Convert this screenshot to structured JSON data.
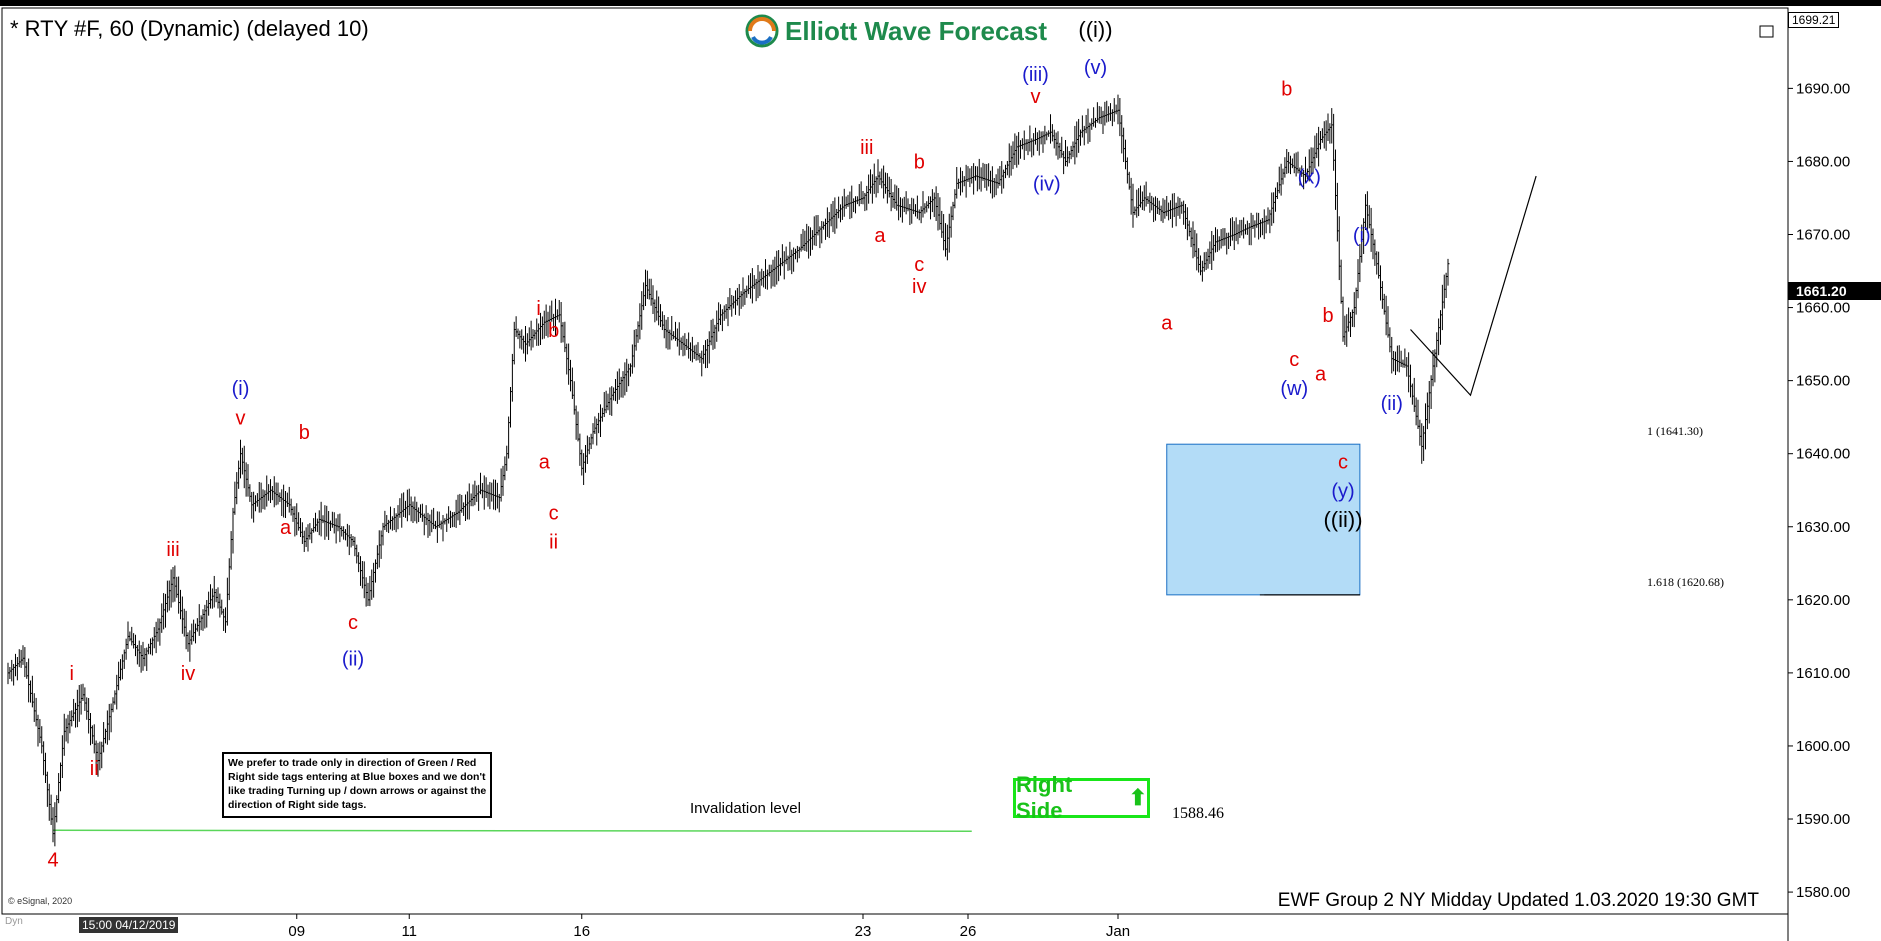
{
  "header": {
    "title": "* RTY #F, 60 (Dynamic) (delayed 10)",
    "brand": "Elliott Wave Forecast"
  },
  "chart_data": {
    "type": "candlestick",
    "title": "* RTY #F, 60 (Dynamic) (delayed 10)",
    "y_ticks": [
      "1690.00",
      "1680.00",
      "1670.00",
      "1660.00",
      "1650.00",
      "1640.00",
      "1630.00",
      "1620.00",
      "1610.00",
      "1600.00",
      "1590.00",
      "1580.00"
    ],
    "ylim": [
      1577,
      1701
    ],
    "x_ticks": [
      "09",
      "11",
      "16",
      "23",
      "26",
      "Jan"
    ],
    "current_price": "1661.20",
    "top_price": "1699.21",
    "price_path": [
      [
        0,
        1610
      ],
      [
        8,
        1612
      ],
      [
        18,
        1600
      ],
      [
        24,
        1588
      ],
      [
        30,
        1602
      ],
      [
        40,
        1607
      ],
      [
        48,
        1598
      ],
      [
        56,
        1606
      ],
      [
        64,
        1615
      ],
      [
        72,
        1612
      ],
      [
        80,
        1616
      ],
      [
        88,
        1623
      ],
      [
        96,
        1614
      ],
      [
        104,
        1618
      ],
      [
        110,
        1621
      ],
      [
        116,
        1617
      ],
      [
        120,
        1632
      ],
      [
        124,
        1640
      ],
      [
        130,
        1633
      ],
      [
        140,
        1635
      ],
      [
        150,
        1633
      ],
      [
        158,
        1628
      ],
      [
        166,
        1631
      ],
      [
        176,
        1630
      ],
      [
        184,
        1628
      ],
      [
        192,
        1620
      ],
      [
        200,
        1630
      ],
      [
        214,
        1633
      ],
      [
        228,
        1630
      ],
      [
        240,
        1632
      ],
      [
        252,
        1635
      ],
      [
        262,
        1634
      ],
      [
        266,
        1640
      ],
      [
        270,
        1657
      ],
      [
        276,
        1655
      ],
      [
        286,
        1658
      ],
      [
        294,
        1659
      ],
      [
        300,
        1650
      ],
      [
        306,
        1638
      ],
      [
        312,
        1643
      ],
      [
        322,
        1648
      ],
      [
        332,
        1652
      ],
      [
        340,
        1663
      ],
      [
        350,
        1657
      ],
      [
        360,
        1655
      ],
      [
        370,
        1653
      ],
      [
        380,
        1659
      ],
      [
        392,
        1662
      ],
      [
        402,
        1664
      ],
      [
        412,
        1666
      ],
      [
        422,
        1668
      ],
      [
        434,
        1671
      ],
      [
        446,
        1674
      ],
      [
        456,
        1675
      ],
      [
        464,
        1678
      ],
      [
        474,
        1674
      ],
      [
        486,
        1673
      ],
      [
        494,
        1675
      ],
      [
        500,
        1668
      ],
      [
        506,
        1677
      ],
      [
        516,
        1678
      ],
      [
        528,
        1677
      ],
      [
        538,
        1682
      ],
      [
        548,
        1683
      ],
      [
        556,
        1684
      ],
      [
        564,
        1680
      ],
      [
        572,
        1684
      ],
      [
        582,
        1686
      ],
      [
        592,
        1687
      ],
      [
        600,
        1673
      ],
      [
        606,
        1675
      ],
      [
        616,
        1673
      ],
      [
        626,
        1674
      ],
      [
        636,
        1665
      ],
      [
        644,
        1669
      ],
      [
        654,
        1670
      ],
      [
        662,
        1671
      ],
      [
        672,
        1672
      ],
      [
        682,
        1680
      ],
      [
        692,
        1678
      ],
      [
        700,
        1683
      ],
      [
        706,
        1685
      ],
      [
        712,
        1656
      ],
      [
        718,
        1660
      ],
      [
        724,
        1674
      ],
      [
        730,
        1666
      ],
      [
        738,
        1653
      ],
      [
        746,
        1652
      ],
      [
        754,
        1641
      ],
      [
        760,
        1652
      ],
      [
        768,
        1666
      ]
    ],
    "projection": [
      [
        748,
        1657
      ],
      [
        780,
        1648
      ],
      [
        815,
        1678
      ]
    ],
    "wave_labels": [
      {
        "text": "4",
        "color": "#e00000",
        "x": 24,
        "y": 1583.5
      },
      {
        "text": "i",
        "color": "#e00000",
        "x": 34,
        "y": 1609
      },
      {
        "text": "ii",
        "color": "#e00000",
        "x": 46,
        "y": 1596
      },
      {
        "text": "iii",
        "color": "#e00000",
        "x": 88,
        "y": 1626
      },
      {
        "text": "iv",
        "color": "#e00000",
        "x": 96,
        "y": 1609
      },
      {
        "text": "(i)",
        "color": "#1a1acc",
        "x": 124,
        "y": 1648
      },
      {
        "text": "v",
        "color": "#e00000",
        "x": 124,
        "y": 1644
      },
      {
        "text": "a",
        "color": "#e00000",
        "x": 148,
        "y": 1629
      },
      {
        "text": "b",
        "color": "#e00000",
        "x": 158,
        "y": 1642
      },
      {
        "text": "c",
        "color": "#e00000",
        "x": 184,
        "y": 1616
      },
      {
        "text": "(ii)",
        "color": "#1a1acc",
        "x": 184,
        "y": 1611
      },
      {
        "text": "i",
        "color": "#e00000",
        "x": 283,
        "y": 1659
      },
      {
        "text": "b",
        "color": "#e00000",
        "x": 291,
        "y": 1656
      },
      {
        "text": "a",
        "color": "#e00000",
        "x": 286,
        "y": 1638
      },
      {
        "text": "c",
        "color": "#e00000",
        "x": 291,
        "y": 1631
      },
      {
        "text": "ii",
        "color": "#e00000",
        "x": 291,
        "y": 1627
      },
      {
        "text": "iii",
        "color": "#e00000",
        "x": 458,
        "y": 1681
      },
      {
        "text": "a",
        "color": "#e00000",
        "x": 465,
        "y": 1669
      },
      {
        "text": "b",
        "color": "#e00000",
        "x": 486,
        "y": 1679
      },
      {
        "text": "c",
        "color": "#e00000",
        "x": 486,
        "y": 1665
      },
      {
        "text": "iv",
        "color": "#e00000",
        "x": 486,
        "y": 1662
      },
      {
        "text": "(iii)",
        "color": "#1a1acc",
        "x": 548,
        "y": 1691
      },
      {
        "text": "v",
        "color": "#e00000",
        "x": 548,
        "y": 1688
      },
      {
        "text": "(iv)",
        "color": "#1a1acc",
        "x": 554,
        "y": 1676
      },
      {
        "text": "((i))",
        "color": "#000000",
        "x": 580,
        "y": 1697
      },
      {
        "text": "(v)",
        "color": "#1a1acc",
        "x": 580,
        "y": 1692
      },
      {
        "text": "a",
        "color": "#e00000",
        "x": 618,
        "y": 1657
      },
      {
        "text": "b",
        "color": "#e00000",
        "x": 682,
        "y": 1689
      },
      {
        "text": "(x)",
        "color": "#1a1acc",
        "x": 694,
        "y": 1677
      },
      {
        "text": "c",
        "color": "#e00000",
        "x": 686,
        "y": 1652
      },
      {
        "text": "(w)",
        "color": "#1a1acc",
        "x": 686,
        "y": 1648
      },
      {
        "text": "b",
        "color": "#e00000",
        "x": 704,
        "y": 1658
      },
      {
        "text": "a",
        "color": "#e00000",
        "x": 700,
        "y": 1650
      },
      {
        "text": "(i)",
        "color": "#1a1acc",
        "x": 722,
        "y": 1669
      },
      {
        "text": "(ii)",
        "color": "#1a1acc",
        "x": 738,
        "y": 1646
      },
      {
        "text": "c",
        "color": "#e00000",
        "x": 712,
        "y": 1638
      },
      {
        "text": "(y)",
        "color": "#1a1acc",
        "x": 712,
        "y": 1634
      },
      {
        "text": "((ii))",
        "color": "#000000",
        "x": 712,
        "y": 1630
      }
    ],
    "blue_box": {
      "y_high": 1641.3,
      "y_low": 1620.68,
      "color": "#b3dcf7",
      "border": "#1a6fc4"
    },
    "fib_levels": [
      {
        "label": "1 (1641.30)",
        "value": 1641.3
      },
      {
        "label": "1.618 (1620.68)",
        "value": 1620.68
      }
    ],
    "invalidation": {
      "label": "Invalidation level",
      "value_text": "1588.46",
      "value": 1588.46,
      "color": "#5ad65a"
    }
  },
  "note_box": {
    "text": "We prefer to trade only in direction of Green / Red Right side tags entering at Blue boxes and we don't like trading Turning up / down arrows or against the direction of Right side tags."
  },
  "right_side_tag": {
    "label": "Right Side",
    "arrow": "⬆"
  },
  "footer": {
    "update_text": "EWF Group 2 NY Midday Updated 1.03.2020 19:30 GMT",
    "esignal": "© eSignal, 2020",
    "date_box": "15:00 04/12/2019",
    "dyn": "Dyn"
  }
}
